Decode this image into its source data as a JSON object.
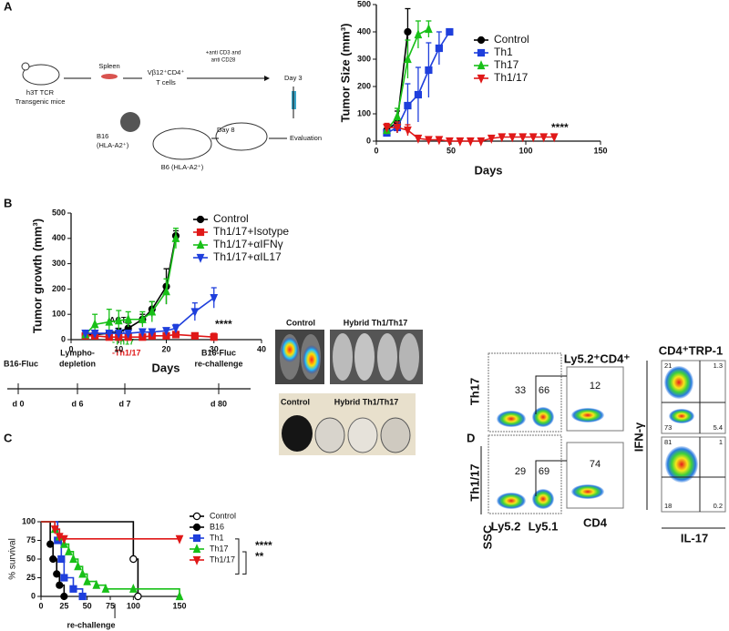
{
  "panel_labels": [
    "A",
    "B",
    "C",
    "D"
  ],
  "schematic_a": {
    "mouse": [
      "h3T TCR",
      "Transgenic mice"
    ],
    "spleen": "Spleen",
    "cells": [
      "Vβ12⁺CD4⁺",
      "T cells"
    ],
    "stim": [
      "+anti CD3 and",
      "anti CD28"
    ],
    "day3": "Day 3",
    "tumor": [
      "B16",
      "(HLA-A2⁺)"
    ],
    "host": "B6 (HLA-A2⁺)",
    "day8": "Day 8",
    "evaluation": "Evaluation"
  },
  "timeline_c": {
    "events": [
      "B16-Fluc",
      [
        "Lympho-",
        "depletion"
      ],
      [
        "B16-Fluc",
        "re-challenge"
      ]
    ],
    "act": {
      "label": "ACT",
      "groups": [
        "-Th1",
        "-Th17",
        "-Th1/17"
      ]
    },
    "days": [
      "d 0",
      "d 6",
      "d 7",
      "d 80"
    ]
  },
  "images_c": {
    "top": [
      "Control",
      "Hybrid Th1/Th17"
    ],
    "bottom": [
      "Control",
      "Hybrid Th1/Th17"
    ]
  },
  "flow_d": {
    "rows": [
      "Th17",
      "Th1/17"
    ],
    "ssc": "SSC",
    "ly52": "Ly5.2",
    "ly51": "Ly5.1",
    "gate_title": "Ly5.2⁺CD4⁺",
    "cd4": "CD4",
    "trp1_title": "CD4⁺TRP-1",
    "ifng": "IFN-γ",
    "il17": "IL-17",
    "values": [
      33,
      66,
      12,
      29,
      69,
      74,
      21,
      1.3,
      73,
      5.4,
      81,
      1,
      18,
      0.2
    ]
  },
  "chart_data": [
    {
      "type": "line",
      "xlabel": "Days",
      "ylabel": "Tumor Size (mm³)",
      "xlim": [
        0,
        150
      ],
      "xticks": [
        0,
        50,
        100,
        150
      ],
      "ylim": [
        0,
        500
      ],
      "yticks": [
        0,
        100,
        200,
        300,
        400,
        500
      ],
      "legend": "upper right",
      "annotations": [
        "****"
      ],
      "series": [
        {
          "name": "Control",
          "color": "#000000",
          "marker": "circle",
          "x": [
            7,
            14,
            21
          ],
          "values": [
            40,
            70,
            400
          ],
          "errors": [
            20,
            40,
            85
          ]
        },
        {
          "name": "Th1",
          "color": "#1f3fdc",
          "marker": "square",
          "x": [
            7,
            14,
            21,
            28,
            35,
            42,
            49
          ],
          "values": [
            30,
            50,
            130,
            170,
            260,
            340,
            400
          ],
          "errors": [
            10,
            20,
            80,
            100,
            100,
            60,
            0
          ]
        },
        {
          "name": "Th17",
          "color": "#18c018",
          "marker": "triangle",
          "x": [
            7,
            14,
            21,
            28,
            35
          ],
          "values": [
            40,
            90,
            300,
            390,
            410
          ],
          "errors": [
            15,
            30,
            70,
            50,
            30
          ]
        },
        {
          "name": "Th1/17",
          "color": "#e01818",
          "marker": "triangle-down",
          "x": [
            7,
            14,
            21,
            28,
            35,
            42,
            49,
            56,
            63,
            70,
            77,
            84,
            91,
            98,
            105,
            112,
            119
          ],
          "values": [
            50,
            50,
            40,
            10,
            5,
            5,
            0,
            0,
            0,
            0,
            10,
            15,
            15,
            15,
            15,
            15,
            15
          ],
          "errors": [
            15,
            20,
            20,
            10,
            5,
            5,
            0,
            0,
            0,
            0,
            10,
            10,
            10,
            10,
            10,
            10,
            10
          ]
        }
      ]
    },
    {
      "type": "line",
      "xlabel": "Days",
      "ylabel": "Tumor growth (mm³)",
      "xlim": [
        0,
        40
      ],
      "xticks": [
        0,
        10,
        20,
        30,
        40
      ],
      "ylim": [
        0,
        500
      ],
      "yticks": [
        0,
        100,
        200,
        300,
        400,
        500
      ],
      "legend": "upper right",
      "annotations": [
        "****"
      ],
      "x": [
        3,
        5,
        8,
        10,
        12,
        15,
        17,
        20,
        22,
        26,
        30
      ],
      "series": [
        {
          "name": "Control",
          "color": "#000000",
          "marker": "circle",
          "values": [
            20,
            20,
            25,
            30,
            45,
            80,
            120,
            210,
            410,
            null,
            null
          ],
          "errors": [
            5,
            5,
            10,
            15,
            20,
            20,
            30,
            70,
            20,
            null,
            null
          ]
        },
        {
          "name": "Th1/17+Isotype",
          "color": "#e01818",
          "marker": "square",
          "values": [
            15,
            15,
            10,
            10,
            10,
            10,
            15,
            15,
            20,
            15,
            10
          ],
          "errors": [
            10,
            10,
            5,
            5,
            5,
            5,
            5,
            5,
            10,
            10,
            15
          ]
        },
        {
          "name": "Th1/17+αIFNγ",
          "color": "#18c018",
          "marker": "triangle",
          "values": [
            20,
            60,
            70,
            75,
            80,
            80,
            110,
            190,
            400,
            null,
            null
          ],
          "errors": [
            10,
            40,
            50,
            40,
            30,
            30,
            40,
            50,
            40,
            null,
            null
          ]
        },
        {
          "name": "Th1/17+αIL17",
          "color": "#1f3fdc",
          "marker": "triangle-down",
          "values": [
            25,
            25,
            25,
            25,
            25,
            30,
            30,
            35,
            45,
            110,
            165
          ],
          "errors": [
            10,
            10,
            10,
            10,
            10,
            10,
            10,
            10,
            15,
            35,
            40
          ]
        }
      ]
    },
    {
      "type": "step",
      "xlabel": "re-challenge",
      "ylabel": "% survival",
      "xlim": [
        0,
        150
      ],
      "xticks": [
        0,
        25,
        50,
        75,
        100,
        150
      ],
      "ylim": [
        0,
        100
      ],
      "yticks": [
        0,
        25,
        50,
        75,
        100
      ],
      "legend": "upper right",
      "annotations": [
        "****",
        "**"
      ],
      "series": [
        {
          "name": "Control",
          "color": "#000000",
          "marker": "open-circle",
          "x": [
            0,
            100,
            105
          ],
          "values": [
            100,
            50,
            0
          ]
        },
        {
          "name": "B16",
          "color": "#000000",
          "marker": "circle",
          "x": [
            0,
            10,
            13,
            17,
            20,
            25
          ],
          "values": [
            100,
            70,
            50,
            30,
            15,
            0
          ]
        },
        {
          "name": "Th1",
          "color": "#1f3fdc",
          "marker": "square",
          "x": [
            0,
            18,
            22,
            25,
            35,
            45
          ],
          "values": [
            100,
            75,
            50,
            25,
            10,
            0
          ]
        },
        {
          "name": "Th17",
          "color": "#18c018",
          "marker": "triangle",
          "x": [
            0,
            15,
            20,
            25,
            30,
            35,
            40,
            45,
            50,
            60,
            70,
            100,
            150
          ],
          "values": [
            100,
            90,
            80,
            70,
            60,
            50,
            40,
            30,
            20,
            15,
            10,
            10,
            0
          ]
        },
        {
          "name": "Th1/17",
          "color": "#e01818",
          "marker": "triangle-down",
          "x": [
            0,
            15,
            20,
            25,
            150
          ],
          "values": [
            100,
            90,
            80,
            77,
            77
          ]
        }
      ]
    }
  ]
}
